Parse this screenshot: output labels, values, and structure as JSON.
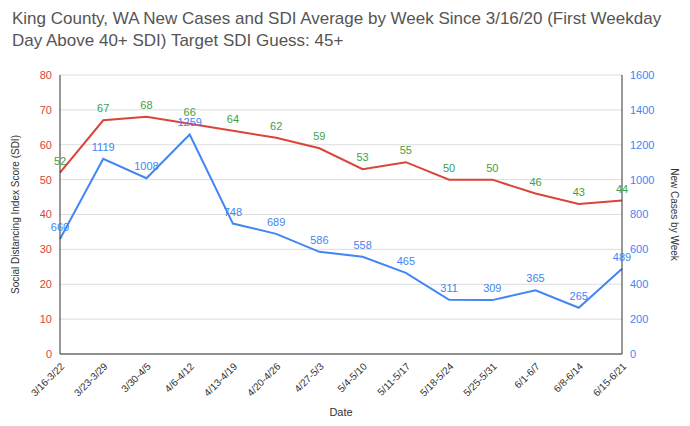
{
  "chart_data": {
    "type": "line",
    "title": "King County, WA New Cases and SDI Average by Week Since 3/16/20 (First Weekday Day Above 40+ SDI) Target SDI Guess: 45+",
    "x_label": "Date",
    "y_label": "Social Distancing Index Score (SDI)",
    "y2_label": "New Cases by Week",
    "categories": [
      "3/16-3/22",
      "3/23-3/29",
      "3/30-4/5",
      "4/6-4/12",
      "4/13-4/19",
      "4/20-4/26",
      "4/27-5/3",
      "5/4-5/10",
      "5/11-5/17",
      "5/18-5/24",
      "5/25-5/31",
      "6/1-6/7",
      "6/8-6/14",
      "6/15-6/21"
    ],
    "series": [
      {
        "name": "SDI",
        "color": "#db4437",
        "axis": "y",
        "values": [
          52,
          67,
          68,
          66,
          64,
          62,
          59,
          53,
          55,
          50,
          50,
          46,
          43,
          44
        ]
      },
      {
        "name": "New Cases",
        "color": "#4285f4",
        "axis": "y2",
        "values": [
          660,
          1119,
          1008,
          1259,
          748,
          689,
          586,
          558,
          465,
          311,
          309,
          365,
          265,
          489
        ]
      }
    ],
    "ylim": [
      0,
      80
    ],
    "yticks": [
      0,
      10,
      20,
      30,
      40,
      50,
      60,
      70,
      80
    ],
    "y2lim": [
      0,
      1600
    ],
    "y2ticks": [
      0,
      200,
      400,
      600,
      800,
      1000,
      1200,
      1400,
      1600
    ],
    "grid": true,
    "data_labels": true
  }
}
